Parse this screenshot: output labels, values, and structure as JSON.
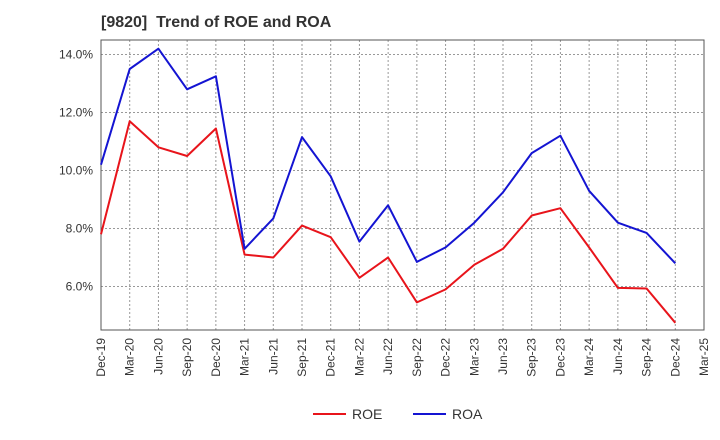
{
  "chart_data": {
    "type": "line",
    "title": "[9820]  Trend of ROE and ROA",
    "xlabel": "",
    "ylabel": "",
    "categories": [
      "Dec-19",
      "Mar-20",
      "Jun-20",
      "Sep-20",
      "Dec-20",
      "Mar-21",
      "Jun-21",
      "Sep-21",
      "Dec-21",
      "Mar-22",
      "Jun-22",
      "Sep-22",
      "Dec-22",
      "Mar-23",
      "Jun-23",
      "Sep-23",
      "Dec-23",
      "Mar-24",
      "Jun-24",
      "Sep-24",
      "Dec-24",
      "Mar-25"
    ],
    "ylim": [
      4.5,
      14.5
    ],
    "yticks": [
      "6.0%",
      "8.0%",
      "10.0%",
      "12.0%",
      "14.0%"
    ],
    "ytick_values": [
      6,
      8,
      10,
      12,
      14
    ],
    "grid": true,
    "legend_position": "bottom-center",
    "series": [
      {
        "name": "ROE",
        "color": "#e8141b",
        "values": [
          7.8,
          11.7,
          10.8,
          10.5,
          11.45,
          7.1,
          7.0,
          8.1,
          7.7,
          6.3,
          7.0,
          5.45,
          5.9,
          6.75,
          7.3,
          8.45,
          8.7,
          7.35,
          5.95,
          5.93,
          4.75,
          null
        ]
      },
      {
        "name": "ROA",
        "color": "#1414d2",
        "values": [
          10.2,
          13.5,
          14.2,
          12.8,
          13.25,
          7.3,
          8.35,
          11.15,
          9.8,
          7.55,
          8.8,
          6.85,
          7.35,
          8.2,
          9.25,
          10.6,
          11.2,
          9.3,
          8.2,
          7.85,
          6.8,
          null
        ]
      }
    ]
  }
}
